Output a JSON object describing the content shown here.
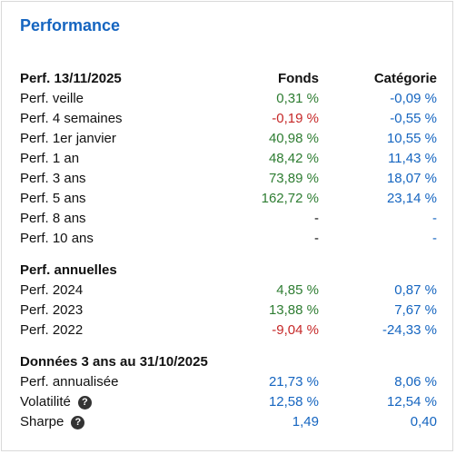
{
  "title": "Performance",
  "section1": {
    "header": "Perf. 13/11/2025",
    "col_fonds": "Fonds",
    "col_categorie": "Catégorie",
    "rows": [
      {
        "label": "Perf. veille",
        "fonds": "0,31 %",
        "categorie": "-0,09 %"
      },
      {
        "label": "Perf. 4 semaines",
        "fonds": "-0,19 %",
        "categorie": "-0,55 %"
      },
      {
        "label": "Perf. 1er janvier",
        "fonds": "40,98 %",
        "categorie": "10,55 %"
      },
      {
        "label": "Perf. 1 an",
        "fonds": "48,42 %",
        "categorie": "11,43 %"
      },
      {
        "label": "Perf. 3 ans",
        "fonds": "73,89 %",
        "categorie": "18,07 %"
      },
      {
        "label": "Perf. 5 ans",
        "fonds": "162,72 %",
        "categorie": "23,14 %"
      },
      {
        "label": "Perf. 8 ans",
        "fonds": "-",
        "categorie": "-"
      },
      {
        "label": "Perf. 10 ans",
        "fonds": "-",
        "categorie": "-"
      }
    ]
  },
  "section2": {
    "header": "Perf. annuelles",
    "rows": [
      {
        "label": "Perf. 2024",
        "fonds": "4,85 %",
        "categorie": "0,87 %"
      },
      {
        "label": "Perf. 2023",
        "fonds": "13,88 %",
        "categorie": "7,67 %"
      },
      {
        "label": "Perf. 2022",
        "fonds": "-9,04 %",
        "categorie": "-24,33 %"
      }
    ]
  },
  "section3": {
    "header": "Données 3 ans au 31/10/2025",
    "rows": [
      {
        "label": "Perf. annualisée",
        "fonds": "21,73 %",
        "categorie": "8,06 %"
      },
      {
        "label": "Volatilité",
        "fonds": "12,58 %",
        "categorie": "12,54 %"
      },
      {
        "label": "Sharpe",
        "fonds": "1,49",
        "categorie": "0,40"
      }
    ]
  },
  "help_icon": "?",
  "colors": {
    "title": "#1565c0",
    "positive": "#2e7d32",
    "negative": "#c62828",
    "category": "#1565c0"
  }
}
